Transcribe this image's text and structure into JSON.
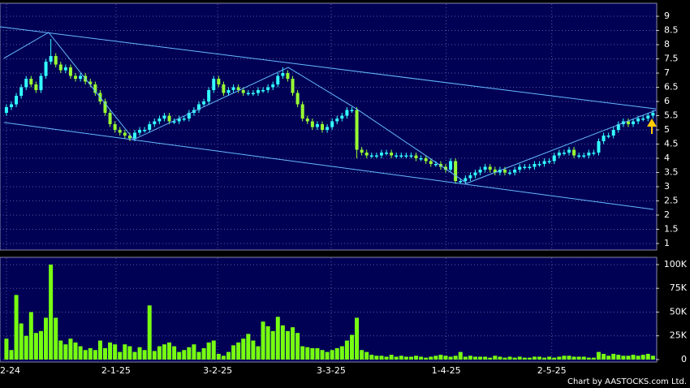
{
  "chart_data": {
    "type": "candlestick",
    "credit": "Chart by AASTOCKS.com Ltd.",
    "xlim": [
      -1.3,
      131.6
    ],
    "xticks": [
      {
        "value": 0,
        "label": "2-24"
      },
      {
        "value": 22.2,
        "label": "2-1-25"
      },
      {
        "value": 42.8,
        "label": "3-2-25"
      },
      {
        "value": 65.8,
        "label": "3-3-25"
      },
      {
        "value": 89.1,
        "label": "1-4-25"
      },
      {
        "value": 110.5,
        "label": "2-5-25"
      }
    ],
    "ylim": [
      0.77,
      9.43
    ],
    "yticks": [
      1,
      1.5,
      2,
      2.5,
      3,
      3.5,
      4,
      4.5,
      5,
      5.5,
      6,
      6.5,
      7,
      7.5,
      8,
      8.5,
      9
    ],
    "volume_ylim": [
      -2600,
      106800
    ],
    "volume_yticks": [
      {
        "value": 0,
        "label": "0"
      },
      {
        "value": 25000,
        "label": "25K"
      },
      {
        "value": 50000,
        "label": "50K"
      },
      {
        "value": 75000,
        "label": "75K"
      },
      {
        "value": 100000,
        "label": "100K"
      }
    ],
    "grid": true,
    "colors": {
      "up": "#33ffff",
      "down": "#99ff33",
      "volume": "#77ff11",
      "line": "#66bbff"
    },
    "open": [
      5.6,
      5.8,
      5.9,
      6.2,
      6.5,
      6.8,
      6.6,
      6.4,
      6.9,
      7.4,
      7.6,
      7.3,
      7.1,
      7.2,
      6.9,
      6.8,
      6.9,
      6.7,
      6.6,
      6.3,
      6.0,
      5.6,
      5.2,
      5.0,
      4.9,
      4.8,
      4.7,
      4.9,
      5.0,
      5.0,
      5.2,
      5.3,
      5.4,
      5.5,
      5.3,
      5.3,
      5.4,
      5.4,
      5.6,
      5.7,
      5.9,
      6.0,
      6.4,
      6.8,
      6.6,
      6.3,
      6.4,
      6.5,
      6.4,
      6.3,
      6.3,
      6.3,
      6.4,
      6.4,
      6.5,
      6.6,
      6.9,
      7.0,
      6.8,
      6.3,
      5.9,
      5.4,
      5.3,
      5.1,
      5.2,
      5.0,
      5.1,
      5.3,
      5.4,
      5.5,
      5.7,
      5.7,
      4.3,
      4.2,
      4.1,
      4.1,
      4.1,
      4.2,
      4.2,
      4.1,
      4.1,
      4.1,
      4.1,
      4.1,
      4.0,
      4.0,
      3.9,
      3.8,
      3.8,
      3.7,
      3.6,
      3.9,
      3.2,
      3.2,
      3.3,
      3.4,
      3.5,
      3.6,
      3.7,
      3.6,
      3.5,
      3.6,
      3.5,
      3.5,
      3.6,
      3.7,
      3.7,
      3.7,
      3.8,
      3.8,
      3.9,
      3.9,
      4.1,
      4.2,
      4.2,
      4.3,
      4.1,
      4.1,
      4.1,
      4.2,
      4.2,
      4.6,
      4.8,
      4.8,
      5.0,
      5.2,
      5.3,
      5.2,
      5.3,
      5.4,
      5.4,
      5.5
    ],
    "high": [
      5.9,
      6.0,
      6.3,
      6.6,
      6.9,
      6.9,
      6.7,
      7.0,
      7.5,
      8.2,
      7.7,
      7.4,
      7.3,
      7.3,
      7.0,
      7.0,
      7.0,
      6.8,
      6.7,
      6.4,
      6.1,
      5.7,
      5.3,
      5.1,
      5.0,
      4.9,
      5.0,
      5.1,
      5.1,
      5.3,
      5.4,
      5.5,
      5.6,
      5.6,
      5.4,
      5.5,
      5.5,
      5.7,
      5.8,
      6.0,
      6.1,
      6.5,
      6.9,
      6.9,
      6.7,
      6.5,
      6.6,
      6.6,
      6.5,
      6.4,
      6.4,
      6.5,
      6.5,
      6.6,
      6.7,
      7.0,
      7.2,
      7.1,
      6.9,
      6.4,
      6.0,
      5.5,
      5.4,
      5.3,
      5.3,
      5.2,
      5.4,
      5.5,
      5.6,
      5.8,
      5.8,
      5.8,
      4.4,
      4.3,
      4.2,
      4.2,
      4.3,
      4.3,
      4.3,
      4.2,
      4.2,
      4.2,
      4.2,
      4.2,
      4.1,
      4.1,
      4.0,
      3.9,
      3.9,
      3.8,
      4.0,
      4.0,
      3.3,
      3.4,
      3.5,
      3.6,
      3.7,
      3.8,
      3.8,
      3.7,
      3.7,
      3.7,
      3.6,
      3.7,
      3.8,
      3.8,
      3.8,
      3.9,
      3.9,
      4.0,
      4.0,
      4.2,
      4.3,
      4.3,
      4.4,
      4.4,
      4.2,
      4.2,
      4.3,
      4.3,
      4.7,
      4.9,
      4.9,
      5.1,
      5.3,
      5.4,
      5.4,
      5.4,
      5.5,
      5.5,
      5.6,
      5.7
    ],
    "low": [
      5.5,
      5.7,
      5.8,
      6.1,
      6.4,
      6.5,
      6.3,
      6.3,
      6.8,
      7.3,
      7.2,
      7.0,
      7.0,
      6.8,
      6.7,
      6.7,
      6.6,
      6.5,
      6.2,
      5.9,
      5.5,
      5.1,
      4.9,
      4.8,
      4.7,
      4.6,
      4.6,
      4.8,
      4.9,
      4.9,
      5.1,
      5.2,
      5.3,
      5.2,
      5.2,
      5.2,
      5.3,
      5.3,
      5.5,
      5.6,
      5.8,
      5.9,
      6.3,
      6.5,
      6.2,
      6.2,
      6.3,
      6.3,
      6.2,
      6.2,
      6.2,
      6.2,
      6.3,
      6.3,
      6.4,
      6.5,
      6.8,
      6.7,
      6.2,
      5.8,
      5.3,
      5.2,
      5.0,
      5.0,
      4.9,
      4.9,
      5.0,
      5.2,
      5.3,
      5.4,
      5.6,
      4.0,
      4.1,
      4.0,
      4.0,
      4.0,
      4.0,
      4.1,
      4.0,
      4.0,
      4.0,
      4.0,
      4.0,
      3.9,
      3.9,
      3.8,
      3.7,
      3.7,
      3.6,
      3.5,
      3.5,
      3.1,
      3.1,
      3.1,
      3.2,
      3.3,
      3.4,
      3.5,
      3.5,
      3.4,
      3.4,
      3.4,
      3.4,
      3.4,
      3.5,
      3.6,
      3.6,
      3.6,
      3.7,
      3.7,
      3.8,
      3.8,
      4.0,
      4.1,
      4.1,
      4.0,
      4.0,
      4.0,
      4.0,
      4.1,
      4.1,
      4.5,
      4.7,
      4.7,
      4.9,
      5.1,
      5.1,
      5.1,
      5.2,
      5.3,
      5.3,
      5.4
    ],
    "close": [
      5.8,
      5.9,
      6.2,
      6.5,
      6.8,
      6.6,
      6.4,
      6.9,
      7.4,
      7.6,
      7.3,
      7.1,
      7.2,
      6.9,
      6.8,
      6.9,
      6.7,
      6.6,
      6.3,
      6.0,
      5.6,
      5.2,
      5.0,
      4.9,
      4.8,
      4.7,
      4.9,
      5.0,
      5.0,
      5.2,
      5.3,
      5.4,
      5.5,
      5.3,
      5.3,
      5.4,
      5.4,
      5.6,
      5.7,
      5.9,
      6.0,
      6.4,
      6.8,
      6.6,
      6.3,
      6.4,
      6.5,
      6.4,
      6.3,
      6.3,
      6.3,
      6.4,
      6.4,
      6.5,
      6.6,
      6.9,
      7.0,
      6.8,
      6.3,
      5.9,
      5.4,
      5.3,
      5.1,
      5.2,
      5.0,
      5.1,
      5.3,
      5.4,
      5.5,
      5.7,
      5.7,
      4.3,
      4.2,
      4.1,
      4.1,
      4.1,
      4.2,
      4.2,
      4.1,
      4.1,
      4.1,
      4.1,
      4.1,
      4.0,
      4.0,
      3.9,
      3.8,
      3.8,
      3.7,
      3.6,
      3.9,
      3.2,
      3.2,
      3.3,
      3.4,
      3.5,
      3.6,
      3.7,
      3.6,
      3.5,
      3.6,
      3.5,
      3.5,
      3.6,
      3.7,
      3.7,
      3.7,
      3.8,
      3.8,
      3.9,
      3.9,
      4.1,
      4.2,
      4.2,
      4.3,
      4.1,
      4.1,
      4.1,
      4.2,
      4.2,
      4.6,
      4.8,
      4.8,
      5.0,
      5.2,
      5.3,
      5.2,
      5.3,
      5.4,
      5.4,
      5.5,
      5.6
    ],
    "volume": [
      22000,
      10000,
      68000,
      38000,
      25000,
      50000,
      28000,
      30000,
      44000,
      100000,
      44000,
      20000,
      16000,
      22000,
      18000,
      14000,
      10000,
      12000,
      10000,
      20000,
      12000,
      18000,
      16000,
      8000,
      16000,
      14000,
      8000,
      13000,
      10000,
      57000,
      9000,
      14000,
      16000,
      18000,
      14000,
      8000,
      10000,
      13000,
      16000,
      8000,
      12000,
      18000,
      20000,
      6000,
      4000,
      8000,
      15000,
      18000,
      22000,
      27000,
      20000,
      14000,
      40000,
      35000,
      30000,
      45000,
      36000,
      30000,
      34000,
      28000,
      14000,
      13000,
      12000,
      12000,
      10000,
      8000,
      10000,
      12000,
      14000,
      20000,
      26000,
      44000,
      10000,
      8000,
      5000,
      4000,
      4000,
      3000,
      5000,
      3000,
      4000,
      3000,
      3000,
      4000,
      3000,
      2000,
      3000,
      4000,
      5000,
      4000,
      3000,
      4000,
      8000,
      3000,
      4000,
      3000,
      3000,
      3000,
      2000,
      4000,
      3000,
      2000,
      3000,
      2000,
      3000,
      2000,
      2000,
      3000,
      3000,
      2000,
      3000,
      2000,
      3000,
      4000,
      4000,
      3000,
      3000,
      3000,
      2000,
      2000,
      8000,
      6000,
      4000,
      6000,
      5000,
      4000,
      4000,
      5000,
      4000,
      5000,
      6000,
      4000
    ],
    "trendlines": [
      {
        "x": [
          -1.3,
          131.6
        ],
        "y": [
          8.63,
          5.74
        ]
      },
      {
        "x": [
          -0.5,
          131.1
        ],
        "y": [
          5.26,
          2.2
        ]
      },
      {
        "x": [
          -0.5,
          8.55,
          25.8,
          57.1,
          71.1,
          93.3,
          131.6
        ],
        "y": [
          7.52,
          8.43,
          4.66,
          7.2,
          5.72,
          3.12,
          5.69
        ]
      }
    ]
  }
}
